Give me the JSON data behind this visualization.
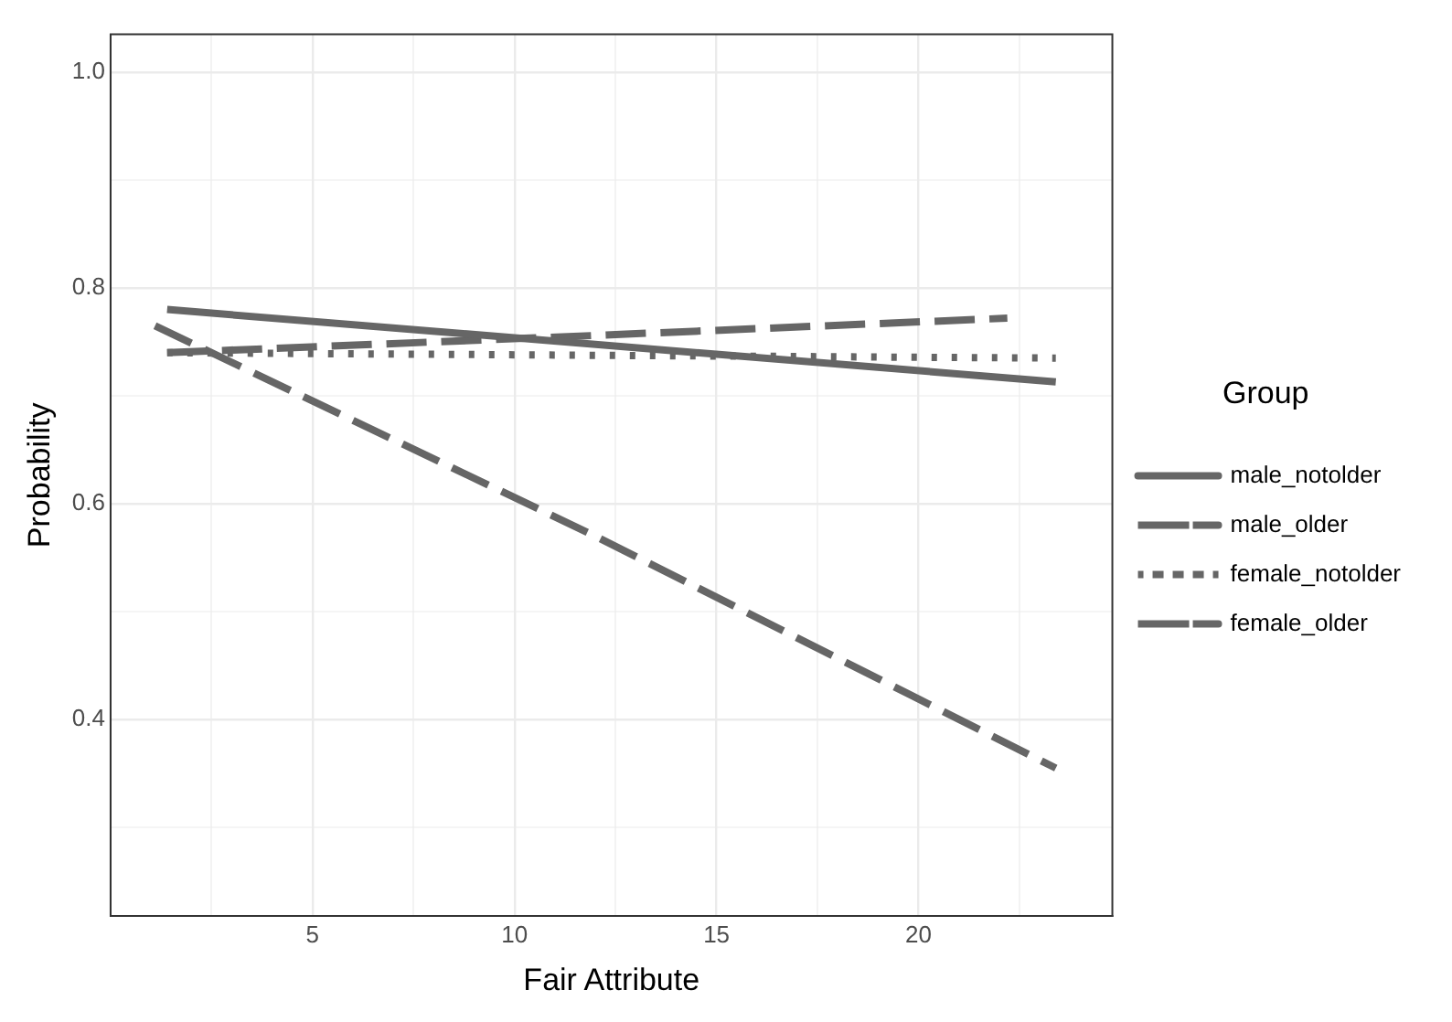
{
  "chart_data": {
    "type": "line",
    "xlabel": "Fair Attribute",
    "ylabel": "Probability",
    "legend_title": "Group",
    "legend": "right",
    "grid": true,
    "marker": "none",
    "xlim": [
      0,
      24.8
    ],
    "xticks": [
      {
        "value": 2.5,
        "label": null
      },
      5,
      {
        "value": 7.5,
        "label": null
      },
      10,
      {
        "value": 12.5,
        "label": null
      },
      15,
      {
        "value": 17.5,
        "label": null
      },
      20,
      {
        "value": 22.5,
        "label": null
      }
    ],
    "ylim": [
      0.218,
      1.035
    ],
    "yticks": [
      {
        "value": 0.3,
        "label": null
      },
      {
        "value": 0.4,
        "label": "0.4"
      },
      {
        "value": 0.5,
        "label": null
      },
      {
        "value": 0.6,
        "label": "0.6"
      },
      {
        "value": 0.7,
        "label": null
      },
      {
        "value": 0.8,
        "label": "0.8"
      },
      {
        "value": 0.9,
        "label": null
      },
      {
        "value": 1.0,
        "label": "1.0"
      }
    ],
    "series": [
      {
        "name": "male_notolder",
        "color": "#666666",
        "line_style": "solid",
        "x": [
          1.4,
          23.4
        ],
        "values": [
          0.78,
          0.713
        ]
      },
      {
        "name": "male_older",
        "color": "#666666",
        "line_style": "dashed",
        "x": [
          1.4,
          12,
          22.2
        ],
        "values": [
          0.74,
          0.756,
          0.772
        ]
      },
      {
        "name": "female_notolder",
        "color": "#666666",
        "line_style": "dotted",
        "x": [
          1.4,
          23.4
        ],
        "values": [
          0.74,
          0.735
        ]
      },
      {
        "name": "female_older",
        "color": "#666666",
        "line_style": "dashed",
        "x": [
          1.1,
          12,
          23.4
        ],
        "values": [
          0.765,
          0.57,
          0.355
        ]
      }
    ]
  }
}
